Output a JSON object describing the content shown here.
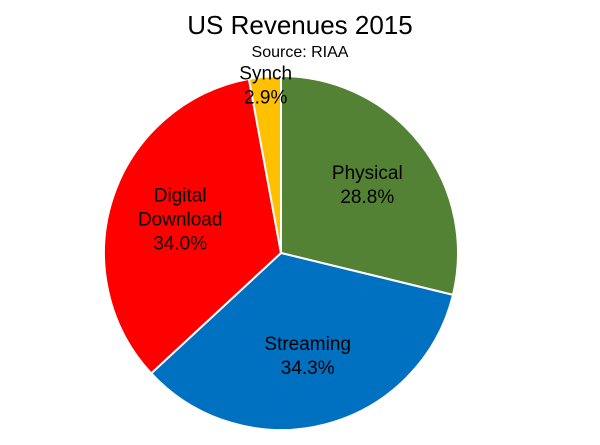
{
  "chart_data": {
    "type": "pie",
    "title": "US Revenues 2015",
    "subtitle": "Source: RIAA",
    "slices": [
      {
        "name": "Physical",
        "value": 28.8,
        "label": "28.8%",
        "color": "#548235"
      },
      {
        "name": "Streaming",
        "value": 34.3,
        "label": "34.3%",
        "color": "#0070C0"
      },
      {
        "name": "Digital Download",
        "value": 34.0,
        "label": "34.0%",
        "color": "#FF0000"
      },
      {
        "name": "Synch",
        "value": 2.9,
        "label": "2.9%",
        "color": "#FFC000"
      }
    ],
    "start": "12 o'clock",
    "direction": "clockwise",
    "legend": "none"
  }
}
